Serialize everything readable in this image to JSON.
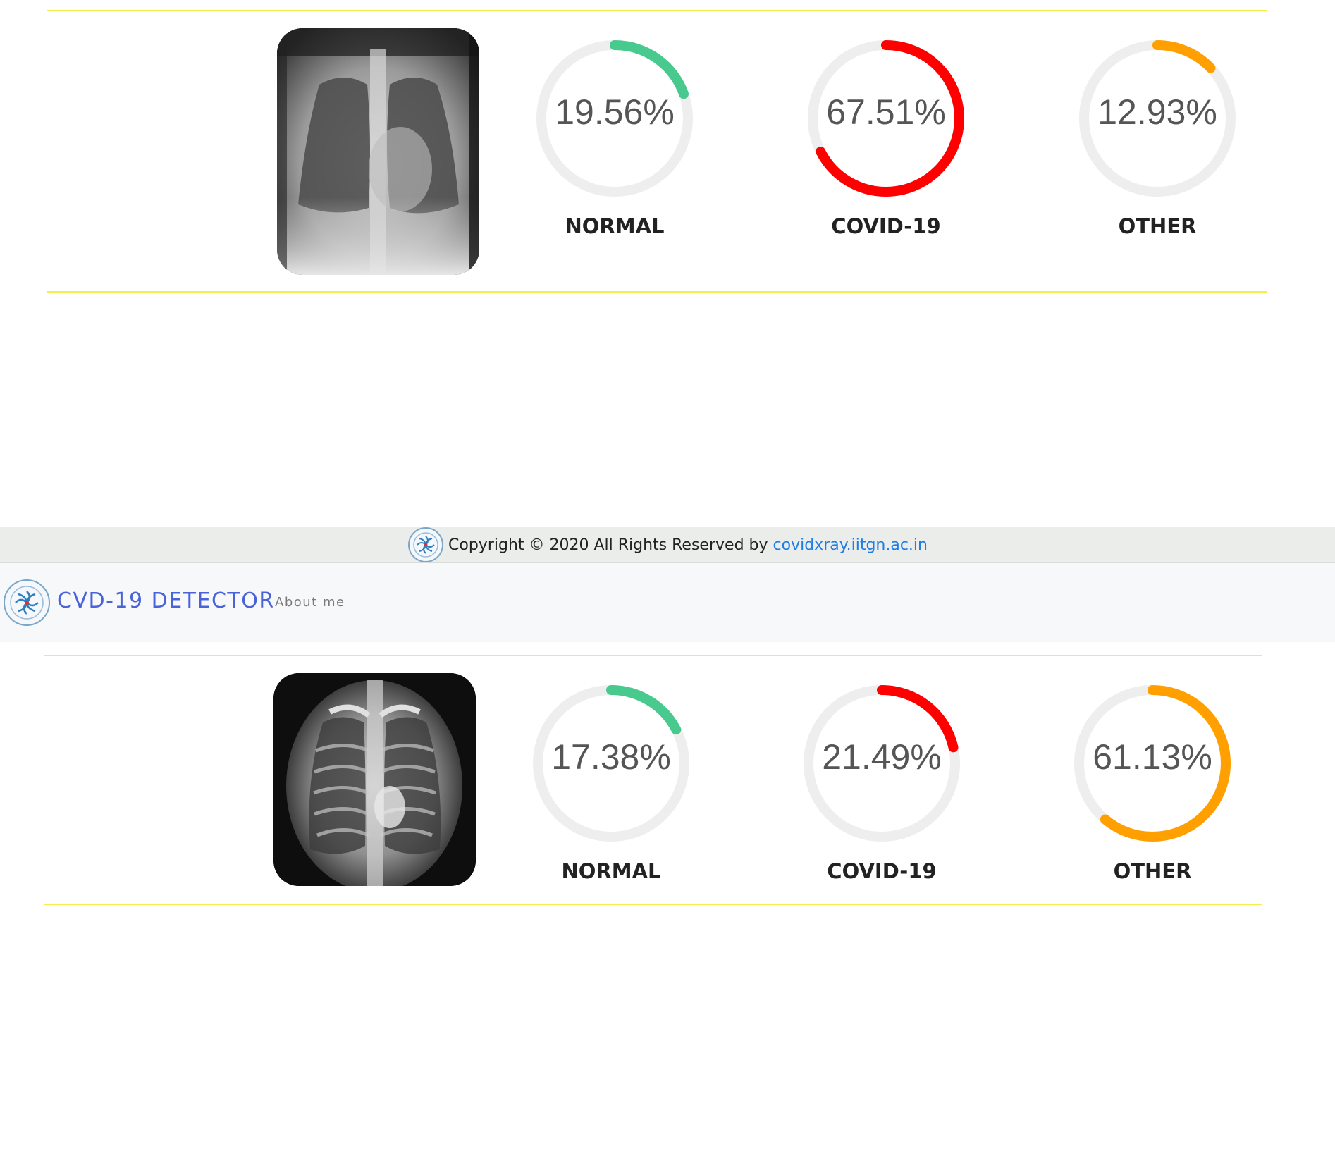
{
  "results": [
    {
      "image": "chest-xray-adult",
      "gauges": [
        {
          "percent_text": "19.56%",
          "value": 19.56,
          "label": "NORMAL",
          "color": "#48c98d"
        },
        {
          "percent_text": "67.51%",
          "value": 67.51,
          "label": "COVID-19",
          "color": "#ff0000"
        },
        {
          "percent_text": "12.93%",
          "value": 12.93,
          "label": "OTHER",
          "color": "#ffa000"
        }
      ]
    },
    {
      "image": "chest-xray-child",
      "gauges": [
        {
          "percent_text": "17.38%",
          "value": 17.38,
          "label": "NORMAL",
          "color": "#48c98d"
        },
        {
          "percent_text": "21.49%",
          "value": 21.49,
          "label": "COVID-19",
          "color": "#ff0000"
        },
        {
          "percent_text": "61.13%",
          "value": 61.13,
          "label": "OTHER",
          "color": "#ffa000"
        }
      ]
    }
  ],
  "footer": {
    "copyright": "Copyright © 2020 All Rights Reserved by",
    "link_text": "covidxray.iitgn.ac.in"
  },
  "navbar": {
    "brand": "CVD-19 DETECTOR",
    "about_link": "About me"
  },
  "colors": {
    "track": "#eeeeee",
    "separator": "#f5ef4c",
    "brand": "#4a63d9",
    "link": "#1e7ee6"
  }
}
